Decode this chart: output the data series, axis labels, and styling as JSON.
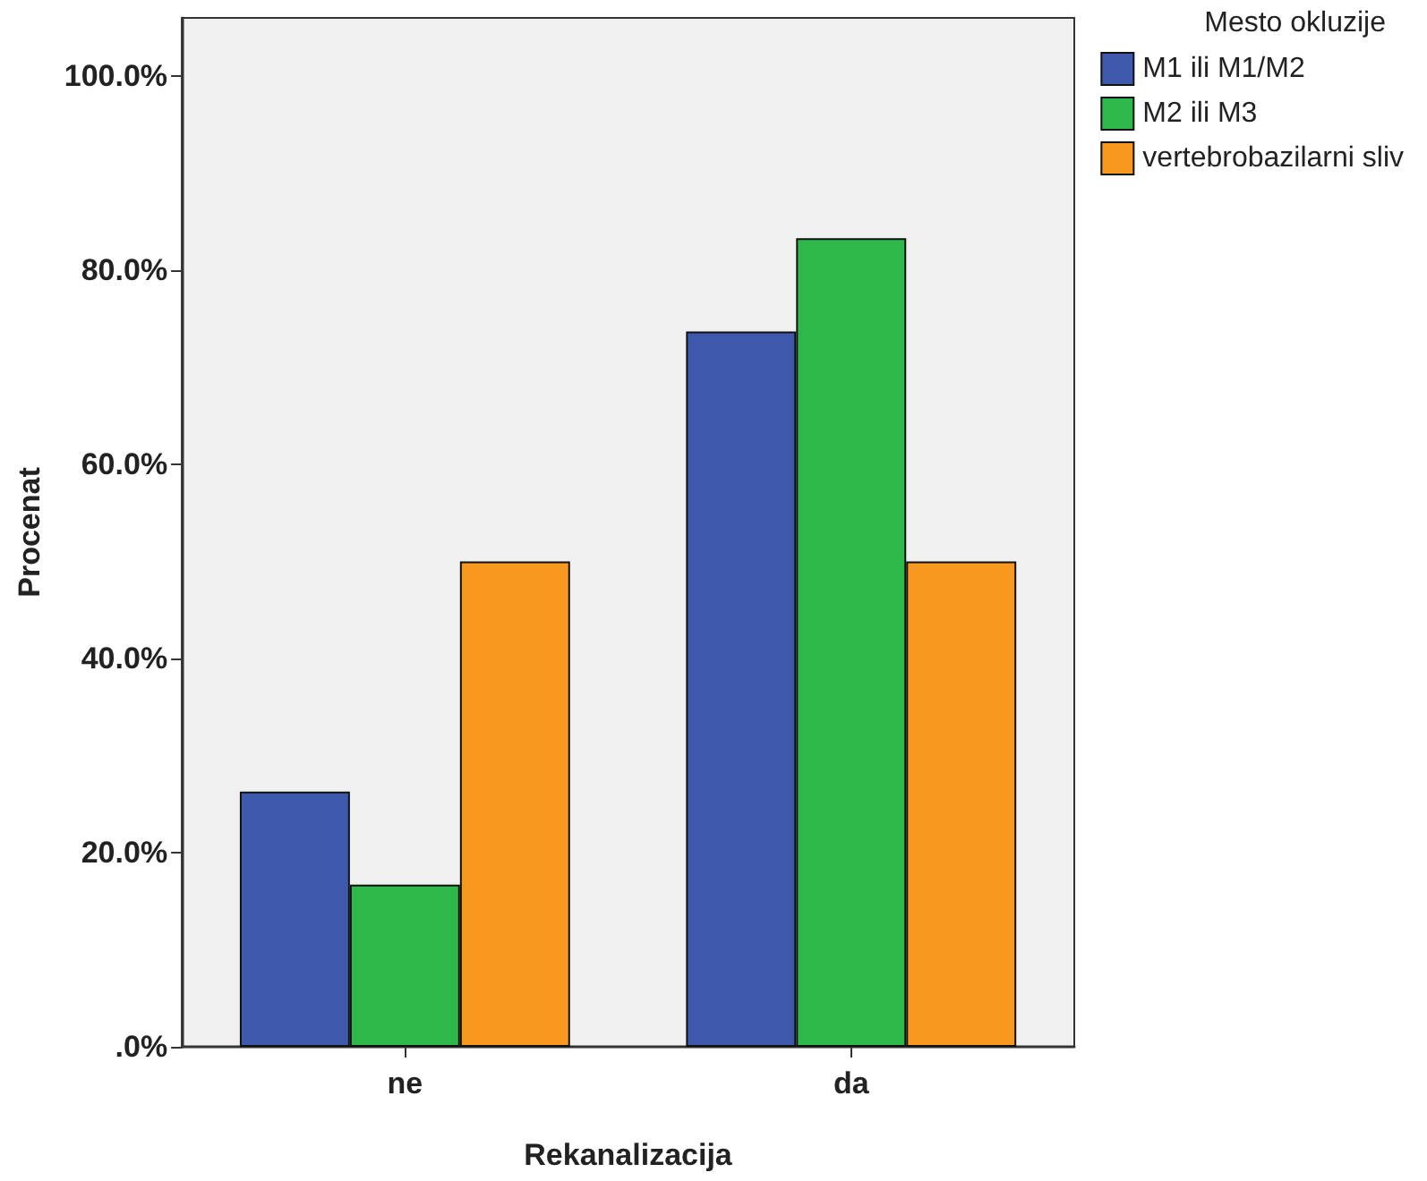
{
  "chart_data": {
    "type": "bar",
    "xlabel": "Rekanalizacija",
    "ylabel": "Procenat",
    "legend_title": "Mesto okluzije",
    "categories": [
      "ne",
      "da"
    ],
    "series": [
      {
        "name": "M1 ili M1/M2",
        "color": "#3e58ac",
        "values": [
          26.3,
          73.7
        ]
      },
      {
        "name": "M2 ili M3",
        "color": "#2fb84a",
        "values": [
          16.7,
          83.3
        ]
      },
      {
        "name": "vertebrobazilarni sliv",
        "color": "#f7981f",
        "values": [
          50,
          50
        ]
      }
    ],
    "ylim": [
      0,
      106
    ],
    "yticks": [
      {
        "value": 0,
        "label": ".0%"
      },
      {
        "value": 20,
        "label": "20.0%"
      },
      {
        "value": 40,
        "label": "40.0%"
      },
      {
        "value": 60,
        "label": "60.0%"
      },
      {
        "value": 80,
        "label": "80.0%"
      },
      {
        "value": 100,
        "label": "100.0%"
      }
    ],
    "grid": false,
    "legend": "top right"
  }
}
